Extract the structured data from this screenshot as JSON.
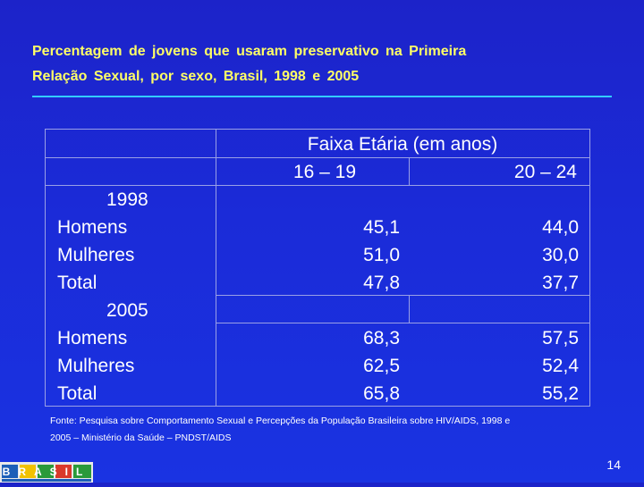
{
  "slide": {
    "title_line1": "Percentagem de jovens que usaram preservativo na Primeira",
    "title_line2": "Relação Sexual, por sexo, Brasil, 1998 e 2005",
    "page_number": "14",
    "colors": {
      "background": "#1b2bd8",
      "title": "#ffff66",
      "rule": "#33ccff",
      "text": "#ffffff"
    }
  },
  "table": {
    "header_group": "Faixa Etária (em anos)",
    "columns": [
      "16 – 19",
      "20 – 24"
    ],
    "groups": [
      {
        "year": "1998",
        "rows": [
          {
            "label": "Homens",
            "values": [
              "45,1",
              "44,0"
            ]
          },
          {
            "label": "Mulheres",
            "values": [
              "51,0",
              "30,0"
            ]
          },
          {
            "label": "Total",
            "values": [
              "47,8",
              "37,7"
            ]
          }
        ]
      },
      {
        "year": "2005",
        "rows": [
          {
            "label": "Homens",
            "values": [
              "68,3",
              "57,5"
            ]
          },
          {
            "label": "Mulheres",
            "values": [
              "62,5",
              "52,4"
            ]
          },
          {
            "label": "Total",
            "values": [
              "65,8",
              "55,2"
            ]
          }
        ]
      }
    ]
  },
  "source": {
    "line1": "Fonte: Pesquisa sobre Comportamento Sexual e Percepções da População Brasileira sobre HIV/AIDS, 1998 e",
    "line2": "2005 – Ministério da Saúde – PNDST/AIDS"
  },
  "logo": {
    "icon": "brasil-government-logo",
    "text": "BRASIL"
  }
}
